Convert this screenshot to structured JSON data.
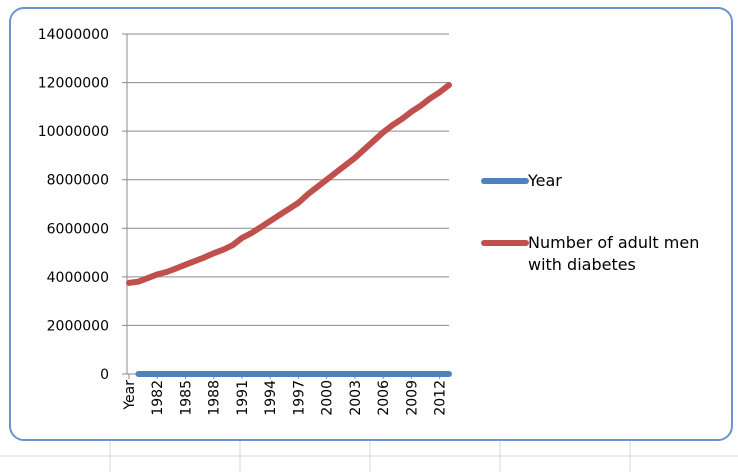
{
  "chart_data": {
    "type": "line",
    "categories": [
      "Year",
      null,
      null,
      "1982",
      null,
      null,
      "1985",
      null,
      null,
      "1988",
      null,
      null,
      "1991",
      null,
      null,
      "1994",
      null,
      null,
      "1997",
      null,
      null,
      "2000",
      null,
      null,
      "2003",
      null,
      null,
      "2006",
      null,
      null,
      "2009",
      null,
      null,
      "2012",
      null
    ],
    "series": [
      {
        "name": "Year",
        "color": "#4f81bd",
        "values": [
          null,
          1980,
          1981,
          1982,
          1983,
          1984,
          1985,
          1986,
          1987,
          1988,
          1989,
          1990,
          1991,
          1992,
          1993,
          1994,
          1995,
          1996,
          1997,
          1998,
          1999,
          2000,
          2001,
          2002,
          2003,
          2004,
          2005,
          2006,
          2007,
          2008,
          2009,
          2010,
          2011,
          2012,
          2013
        ]
      },
      {
        "name": "Number of adult men with diabetes",
        "color": "#c0504d",
        "values": [
          3750000,
          3800000,
          3950000,
          4100000,
          4200000,
          4350000,
          4500000,
          4650000,
          4800000,
          4970000,
          5120000,
          5300000,
          5600000,
          5800000,
          6050000,
          6300000,
          6550000,
          6800000,
          7050000,
          7400000,
          7700000,
          8000000,
          8300000,
          8600000,
          8900000,
          9250000,
          9600000,
          9950000,
          10250000,
          10500000,
          10800000,
          11050000,
          11350000,
          11600000,
          11900000
        ]
      }
    ],
    "ylim": [
      0,
      14000000
    ],
    "yticks": [
      0,
      2000000,
      4000000,
      6000000,
      8000000,
      10000000,
      12000000,
      14000000
    ],
    "grid": true,
    "legend": "right"
  }
}
